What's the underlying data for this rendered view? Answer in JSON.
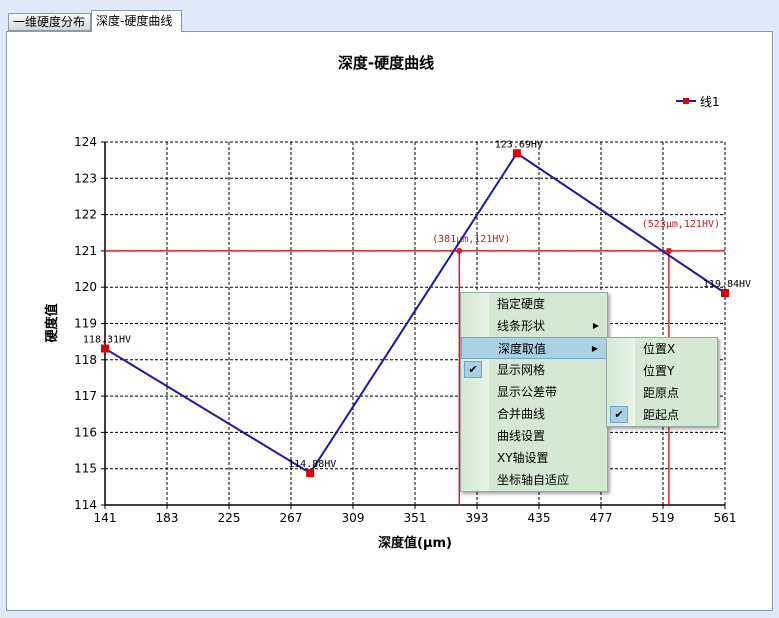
{
  "tabs": [
    {
      "label": "一维硬度分布"
    },
    {
      "label": "深度-硬度曲线"
    }
  ],
  "chart_data": {
    "type": "line",
    "title": "深度-硬度曲线",
    "xlabel": "深度值(μm)",
    "ylabel": "硬度值",
    "xlim": [
      141,
      561
    ],
    "ylim": [
      114,
      124
    ],
    "xticks": [
      141,
      183,
      225,
      267,
      309,
      351,
      393,
      435,
      477,
      519,
      561
    ],
    "yticks": [
      114,
      115,
      116,
      117,
      118,
      119,
      120,
      121,
      122,
      123,
      124
    ],
    "grid": true,
    "legend": {
      "placement": "top-right",
      "entries": [
        "线1"
      ]
    },
    "series": [
      {
        "name": "线1",
        "color": "#1a1aa8",
        "marker_color": "#e00000",
        "x": [
          141,
          280,
          420,
          561
        ],
        "y": [
          118.31,
          114.88,
          123.69,
          119.84
        ],
        "labels": [
          "118.31HV",
          "114.88HV",
          "123.69HV",
          "119.84HV"
        ]
      }
    ],
    "reference": {
      "color": "#e02020",
      "hardness": 121,
      "points": [
        {
          "x": 381,
          "y": 121,
          "label": "(381μm,121HV)"
        },
        {
          "x": 523,
          "y": 121,
          "label": "(523μm,121HV)"
        }
      ]
    }
  },
  "context_menu": {
    "items": [
      {
        "label": "指定硬度"
      },
      {
        "label": "线条形状",
        "submenu": true
      },
      {
        "label": "深度取值",
        "submenu": true,
        "highlighted": true
      },
      {
        "label": "显示网格",
        "checked": true
      },
      {
        "label": "显示公差带"
      },
      {
        "label": "合并曲线"
      },
      {
        "label": "曲线设置"
      },
      {
        "label": "XY轴设置"
      },
      {
        "label": "坐标轴自适应"
      }
    ]
  },
  "submenu": {
    "items": [
      {
        "label": "位置X"
      },
      {
        "label": "位置Y"
      },
      {
        "label": "距原点"
      },
      {
        "label": "距起点",
        "checked": true
      }
    ]
  }
}
